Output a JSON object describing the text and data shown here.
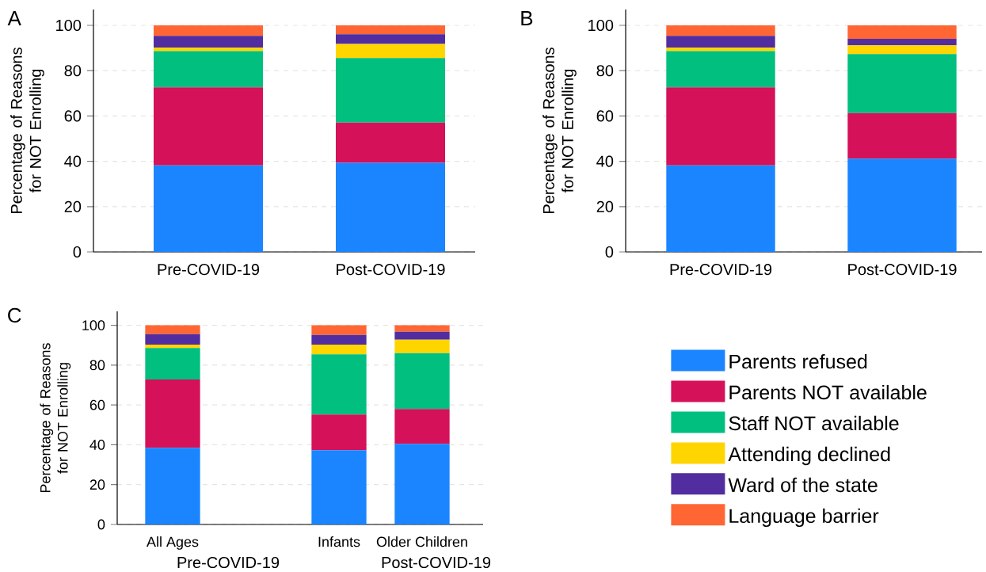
{
  "chart_data": [
    {
      "type": "bar",
      "stacked": true,
      "title": "A",
      "ylabel": "Percentage of Reasons for NOT Enrolling",
      "categories": [
        "Pre-COVID-19",
        "Post-COVID-19"
      ],
      "ylim": [
        0,
        107
      ],
      "yticks": [
        0,
        20,
        40,
        60,
        80,
        100
      ],
      "grid": "y",
      "series": [
        {
          "color": "#1a85ff",
          "values": [
            38.2,
            39.3
          ]
        },
        {
          "color": "#d41159",
          "values": [
            34.4,
            17.8
          ]
        },
        {
          "color": "#00bf7f",
          "values": [
            16.0,
            28.5
          ]
        },
        {
          "color": "#ffd500",
          "values": [
            1.6,
            6.2
          ]
        },
        {
          "color": "#512da0",
          "values": [
            5.2,
            4.3
          ]
        },
        {
          "color": "#ff6633",
          "values": [
            4.6,
            3.9
          ]
        }
      ]
    },
    {
      "type": "bar",
      "stacked": true,
      "title": "B",
      "ylabel": "Percentage of Reasons for NOT Enrolling",
      "categories": [
        "Pre-COVID-19",
        "Post-COVID-19"
      ],
      "ylim": [
        0,
        107
      ],
      "yticks": [
        0,
        20,
        40,
        60,
        80,
        100
      ],
      "grid": "y",
      "series": [
        {
          "color": "#1a85ff",
          "values": [
            38.2,
            41.2
          ]
        },
        {
          "color": "#d41159",
          "values": [
            34.4,
            20.1
          ]
        },
        {
          "color": "#00bf7f",
          "values": [
            16.0,
            26.0
          ]
        },
        {
          "color": "#ffd500",
          "values": [
            1.6,
            3.9
          ]
        },
        {
          "color": "#512da0",
          "values": [
            5.2,
            2.9
          ]
        },
        {
          "color": "#ff6633",
          "values": [
            4.6,
            5.9
          ]
        }
      ]
    },
    {
      "type": "bar",
      "stacked": true,
      "title": "C",
      "ylabel": "Percentage of Reasons for NOT Enrolling",
      "categories": [
        "All Ages",
        null,
        "Infants",
        "Older Children"
      ],
      "ylim": [
        0,
        107
      ],
      "yticks": [
        0,
        20,
        40,
        60,
        80,
        100
      ],
      "grid": "y",
      "legend": "right",
      "annotations": [
        "Pre-COVID-19",
        "Post-COVID-19"
      ],
      "series": [
        {
          "name": "Parents refused",
          "color": "#1a85ff",
          "values": [
            38.5,
            null,
            37.3,
            40.5
          ]
        },
        {
          "name": "Parents NOT available",
          "color": "#d41159",
          "values": [
            34.3,
            null,
            17.9,
            17.5
          ]
        },
        {
          "name": "Staff NOT available",
          "color": "#00bf7f",
          "values": [
            15.8,
            null,
            30.2,
            28.0
          ]
        },
        {
          "name": "Attending declined",
          "color": "#ffd500",
          "values": [
            1.7,
            null,
            4.9,
            6.8
          ]
        },
        {
          "name": "Ward of the state",
          "color": "#512da0",
          "values": [
            5.3,
            null,
            4.9,
            4.0
          ]
        },
        {
          "name": "Language barrier",
          "color": "#ff6633",
          "values": [
            4.4,
            null,
            4.8,
            3.2
          ]
        }
      ]
    }
  ]
}
